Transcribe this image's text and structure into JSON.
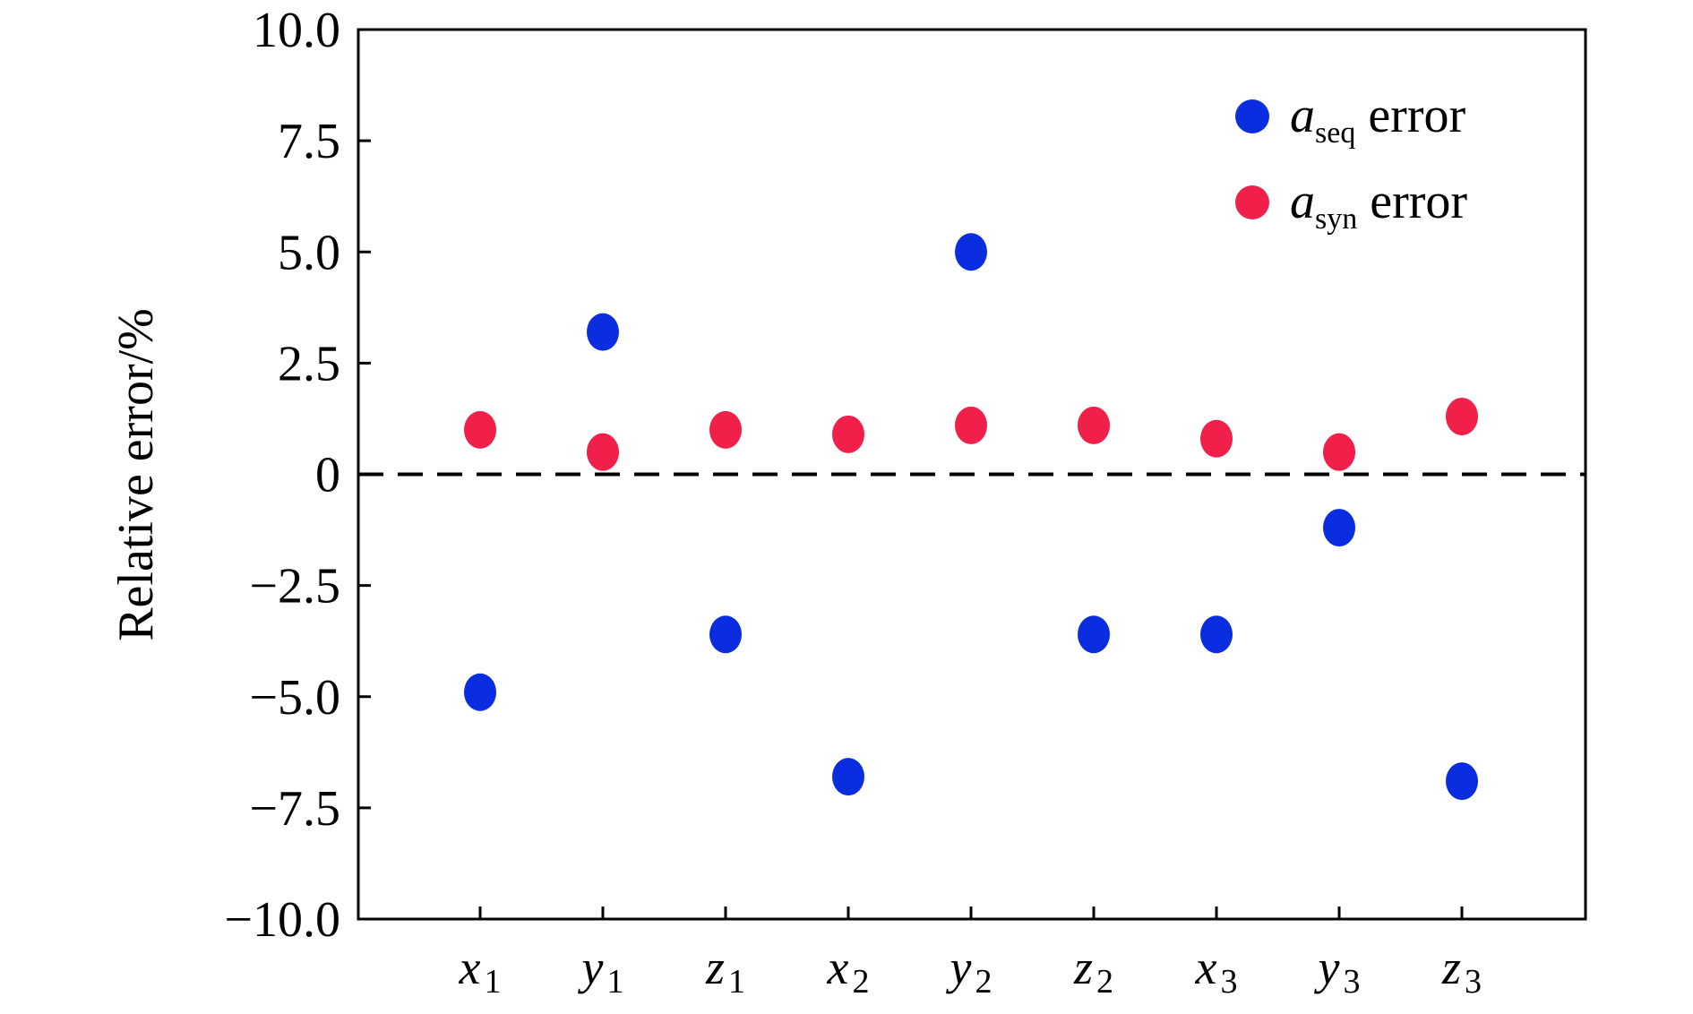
{
  "chart_data": {
    "type": "scatter",
    "ylabel": "Relative error/%",
    "xlabel": "",
    "ylim": [
      -10.0,
      10.0
    ],
    "yticks": [
      "10.0",
      "7.5",
      "5.0",
      "2.5",
      "0",
      "−2.5",
      "−5.0",
      "−7.5",
      "−10.0"
    ],
    "categories": [
      {
        "var": "x",
        "sub": "1"
      },
      {
        "var": "y",
        "sub": "1"
      },
      {
        "var": "z",
        "sub": "1"
      },
      {
        "var": "x",
        "sub": "2"
      },
      {
        "var": "y",
        "sub": "2"
      },
      {
        "var": "z",
        "sub": "2"
      },
      {
        "var": "x",
        "sub": "3"
      },
      {
        "var": "y",
        "sub": "3"
      },
      {
        "var": "z",
        "sub": "3"
      }
    ],
    "reference_line": {
      "y": 0,
      "style": "dashed",
      "color": "#000000"
    },
    "legend_position": "top-right",
    "grid": false,
    "series": [
      {
        "name": "a_seq error",
        "legend": {
          "var": "a",
          "sub": "seq",
          "suffix": " error"
        },
        "color": "#0a2de0",
        "values": [
          -4.9,
          3.2,
          -3.6,
          -6.8,
          5.0,
          -3.6,
          -3.6,
          -1.2,
          -6.9
        ]
      },
      {
        "name": "a_syn error",
        "legend": {
          "var": "a",
          "sub": "syn",
          "suffix": " error"
        },
        "color": "#f0204a",
        "values": [
          1.0,
          0.5,
          1.0,
          0.9,
          1.1,
          1.1,
          0.8,
          0.5,
          1.3
        ]
      }
    ]
  }
}
